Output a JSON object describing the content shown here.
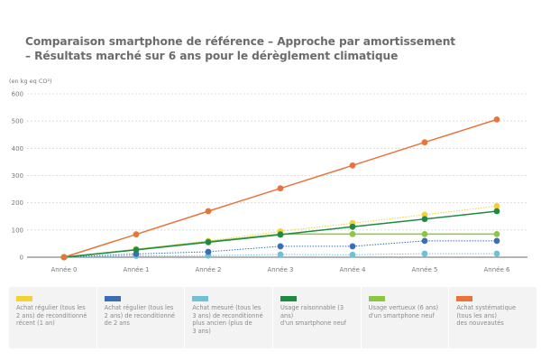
{
  "chart_data": {
    "type": "line",
    "title_line1": "Comparaison smartphone de référence – Approche par amortissement",
    "title_line2": "– Résultats marché sur 6 ans pour le dérèglement climatique",
    "ylabel": "(en kg eq CO²)",
    "xlabel": "",
    "x": [
      "Année 0",
      "Année 1",
      "Année 2",
      "Année 3",
      "Année 4",
      "Année 5",
      "Année 6"
    ],
    "ylim": [
      0,
      600
    ],
    "yticks": [
      "0",
      "100",
      "200",
      "300",
      "400",
      "500",
      "600"
    ],
    "grid": true,
    "legend_position": "bottom",
    "series": [
      {
        "name": "Achat régulier (tous les\n2 ans) de reconditionné\nrécent (1 an)",
        "color": "#f4d233",
        "style": "dotted",
        "values": [
          0,
          30,
          60,
          95,
          125,
          156,
          188
        ]
      },
      {
        "name": "Achat régulier (tous les\n2 ans) de reconditionné\nde 2 ans",
        "color": "#3a6fb5",
        "style": "dotted",
        "values": [
          0,
          12,
          20,
          40,
          40,
          60,
          60
        ]
      },
      {
        "name": "Achat mesuré (tous les\n3 ans) de reconditionné\nplus ancien (plus de\n3 ans)",
        "color": "#6fc2d6",
        "style": "dotted",
        "values": [
          0,
          5,
          6,
          10,
          9,
          13,
          13
        ]
      },
      {
        "name": "Usage raisonnable (3 ans)\nd'un smartphone neuf",
        "color": "#1e8a45",
        "style": "solid",
        "values": [
          0,
          27,
          55,
          83,
          112,
          140,
          169
        ]
      },
      {
        "name": "Usage vertueux (6 ans)\nd'un smartphone neuf",
        "color": "#8dc63f",
        "style": "solid",
        "values": [
          0,
          28,
          57,
          85,
          85,
          85,
          85
        ]
      },
      {
        "name": "Achat systématique\n(tous les ans)\ndes nouveautés",
        "color": "#e8743b",
        "style": "solid",
        "values": [
          0,
          84,
          169,
          253,
          337,
          422,
          506
        ]
      }
    ]
  }
}
